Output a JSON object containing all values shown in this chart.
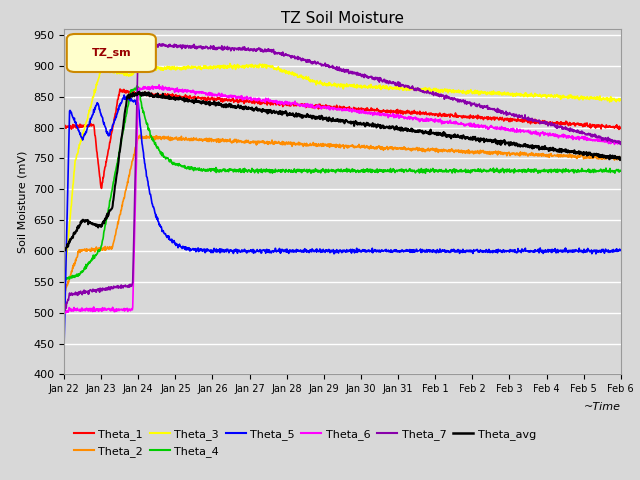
{
  "title": "TZ Soil Moisture",
  "xlabel": "~Time",
  "ylabel": "Soil Moisture (mV)",
  "ylim": [
    400,
    960
  ],
  "yticks": [
    400,
    450,
    500,
    550,
    600,
    650,
    700,
    750,
    800,
    850,
    900,
    950
  ],
  "bg_color": "#d8d8d8",
  "legend_label": "TZ_sm",
  "series_colors": {
    "Theta_1": "#ff0000",
    "Theta_2": "#ff8c00",
    "Theta_3": "#ffff00",
    "Theta_4": "#00cc00",
    "Theta_5": "#0000ff",
    "Theta_6": "#ff00ff",
    "Theta_7": "#8800aa",
    "Theta_avg": "#000000"
  },
  "xtick_labels": [
    "Jan 22",
    "Jan 23",
    "Jan 24",
    "Jan 25",
    "Jan 26",
    "Jan 27",
    "Jan 28",
    "Jan 29",
    "Jan 30",
    "Jan 31",
    "Feb 1",
    "Feb 2",
    "Feb 3",
    "Feb 4",
    "Feb 5",
    "Feb 6"
  ]
}
